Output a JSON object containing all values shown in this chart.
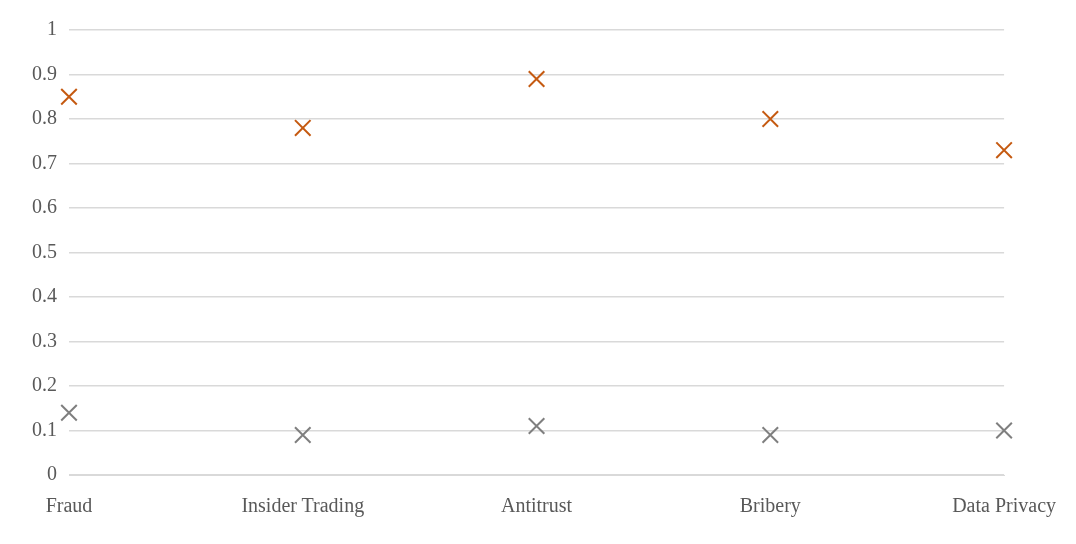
{
  "chart_data": {
    "type": "scatter",
    "categories": [
      "Fraud",
      "Insider Trading",
      "Antitrust",
      "Bribery",
      "Data Privacy"
    ],
    "series": [
      {
        "color": "#c55a11",
        "x": [
          "Fraud",
          "Insider Trading",
          "Antitrust",
          "Bribery",
          "Data Privacy"
        ],
        "values": [
          0.85,
          0.78,
          0.89,
          0.8,
          0.73
        ]
      },
      {
        "color": "#7f7f7f",
        "x": [
          "Fraud",
          "Insider Trading",
          "Antitrust",
          "Bribery",
          "Data Privacy"
        ],
        "values": [
          0.14,
          0.09,
          0.11,
          0.09,
          0.1
        ]
      }
    ],
    "ylim": [
      0,
      1
    ],
    "yticks": [
      0,
      0.1,
      0.2,
      0.3,
      0.4,
      0.5,
      0.6,
      0.7,
      0.8,
      0.9,
      1
    ],
    "grid": "y",
    "legend": false,
    "marker": "cross"
  }
}
